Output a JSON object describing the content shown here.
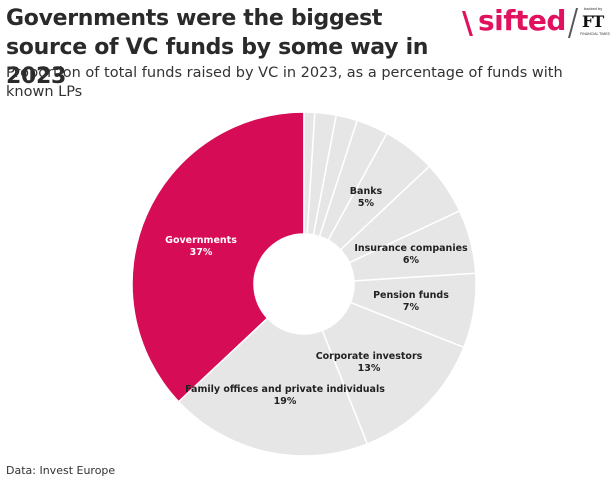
{
  "title": "Governments were the biggest source of VC funds by some way in 2023",
  "subtitle": "Proportion of total funds raised by VC in 2023, as a percentage of funds with known LPs",
  "source": "Data: Invest Europe",
  "logo": {
    "slash": "\\",
    "brand": "sifted",
    "backed_by": "backed by",
    "ft": "FT",
    "ft_name": "FINANCIAL TIMES"
  },
  "colors": {
    "highlight": "#d60c57",
    "other": "#e6e6e6",
    "separator": "#ffffff"
  },
  "chart_data": {
    "type": "pie",
    "donut": true,
    "start": "top",
    "direction": "counterclockwise",
    "slices": [
      {
        "label": "Governments",
        "value": 37,
        "value_label": "37%",
        "highlight": true
      },
      {
        "label": "Family offices and private individuals",
        "value": 19,
        "value_label": "19%"
      },
      {
        "label": "Corporate investors",
        "value": 13,
        "value_label": "13%"
      },
      {
        "label": "Pension funds",
        "value": 7,
        "value_label": "7%"
      },
      {
        "label": "Insurance companies",
        "value": 6,
        "value_label": "6%"
      },
      {
        "label": "Banks",
        "value": 5,
        "value_label": "5%"
      },
      {
        "label": "",
        "value": 5,
        "value_label": ""
      },
      {
        "label": "",
        "value": 3,
        "value_label": ""
      },
      {
        "label": "",
        "value": 2,
        "value_label": ""
      },
      {
        "label": "",
        "value": 2,
        "value_label": ""
      },
      {
        "label": "",
        "value": 1,
        "value_label": ""
      }
    ]
  }
}
